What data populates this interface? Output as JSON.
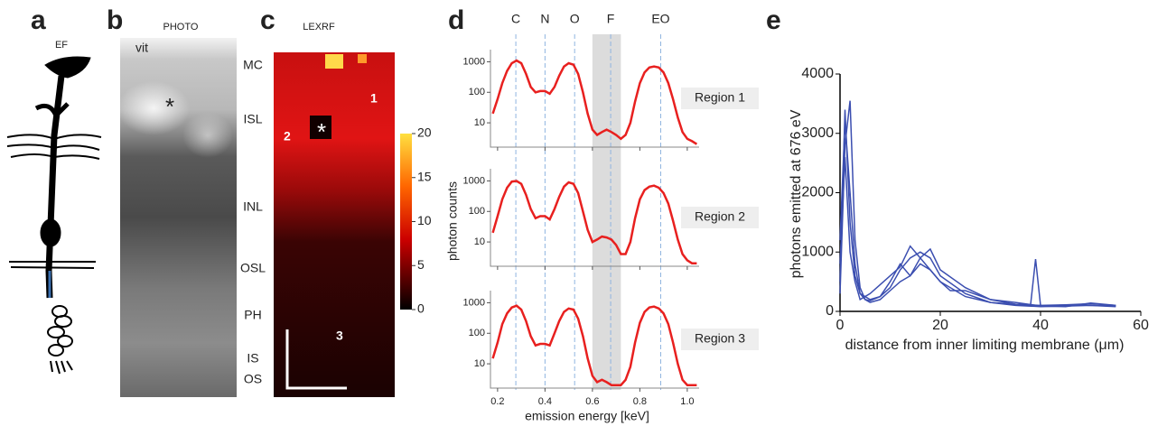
{
  "figure": {
    "panel_a": {
      "letter": "a",
      "label": "EF"
    },
    "panel_b": {
      "letter": "b",
      "label": "PHOTO",
      "vit": "vit",
      "star": "*",
      "layers": [
        "MC",
        "ISL",
        "INL",
        "OSL",
        "PH",
        "IS",
        "OS"
      ]
    },
    "panel_c": {
      "letter": "c",
      "label": "LEXRF",
      "star": "*",
      "regions": [
        "1",
        "2",
        "3"
      ],
      "colorbar": {
        "range": [
          0,
          20
        ],
        "ticks": [
          0,
          5,
          10,
          15,
          20
        ]
      }
    },
    "panel_d": {
      "letter": "d"
    },
    "panel_e": {
      "letter": "e"
    }
  },
  "chart_data": [
    {
      "type": "line",
      "subplots": true,
      "log_y": true,
      "xlabel": "emission energy [keV]",
      "ylabel": "photon counts",
      "x": [
        0.18,
        0.2,
        0.22,
        0.24,
        0.26,
        0.28,
        0.3,
        0.32,
        0.34,
        0.36,
        0.38,
        0.4,
        0.42,
        0.44,
        0.46,
        0.48,
        0.5,
        0.52,
        0.54,
        0.56,
        0.58,
        0.6,
        0.62,
        0.64,
        0.66,
        0.68,
        0.7,
        0.72,
        0.74,
        0.76,
        0.78,
        0.8,
        0.82,
        0.84,
        0.86,
        0.88,
        0.9,
        0.92,
        0.94,
        0.96,
        0.98,
        1.0,
        1.02,
        1.04
      ],
      "xlim": [
        0.17,
        1.05
      ],
      "xticks": [
        0.2,
        0.4,
        0.6,
        0.8,
        {
          "value": 1,
          "label": "1.0"
        }
      ],
      "ylim": [
        1.6,
        2500
      ],
      "yticks": [
        10,
        100,
        1000
      ],
      "markers": [
        {
          "label": "C",
          "x": 0.277
        },
        {
          "label": "N",
          "x": 0.4
        },
        {
          "label": "O",
          "x": 0.525
        },
        {
          "label": "F",
          "x": 0.677
        },
        {
          "label": "EO",
          "x": 0.888
        }
      ],
      "band": [
        0.6,
        0.72
      ],
      "series": [
        {
          "name": "Region 1",
          "color": "#e8201f",
          "values": [
            20,
            60,
            200,
            500,
            900,
            1100,
            900,
            400,
            150,
            100,
            110,
            110,
            90,
            150,
            350,
            700,
            900,
            800,
            400,
            100,
            20,
            6,
            4,
            5,
            6,
            5,
            4,
            3,
            4,
            10,
            50,
            200,
            450,
            650,
            700,
            650,
            450,
            200,
            60,
            15,
            5,
            3,
            2.5,
            2
          ]
        },
        {
          "name": "Region 2",
          "color": "#e8201f",
          "values": [
            20,
            70,
            250,
            600,
            950,
            1000,
            800,
            350,
            120,
            60,
            70,
            70,
            55,
            120,
            300,
            650,
            900,
            800,
            400,
            100,
            25,
            10,
            12,
            15,
            14,
            12,
            8,
            4,
            4,
            10,
            60,
            250,
            500,
            650,
            700,
            600,
            400,
            180,
            50,
            12,
            4,
            2.5,
            2,
            2
          ]
        },
        {
          "name": "Region 3",
          "color": "#e8201f",
          "values": [
            15,
            50,
            200,
            450,
            700,
            800,
            600,
            250,
            80,
            40,
            45,
            45,
            40,
            100,
            250,
            500,
            650,
            600,
            300,
            80,
            15,
            4,
            2.5,
            3,
            2.5,
            2,
            2,
            2,
            3,
            8,
            50,
            220,
            500,
            700,
            750,
            650,
            450,
            200,
            50,
            10,
            3,
            2,
            2,
            2
          ]
        }
      ]
    },
    {
      "type": "line",
      "xlabel": "distance from inner limiting membrane (μm)",
      "ylabel": "photons emitted at 676 eV",
      "xlim": [
        0,
        60
      ],
      "xticks": [
        0,
        20,
        40,
        60
      ],
      "ylim": [
        0,
        4000
      ],
      "yticks": [
        0,
        1000,
        2000,
        3000,
        4000
      ],
      "series": [
        {
          "color": "#3b4eb0",
          "x": [
            0,
            1,
            2,
            3,
            4,
            5,
            6,
            8,
            10,
            12,
            14,
            16,
            18,
            20,
            25,
            30,
            35,
            40,
            45,
            50,
            55
          ],
          "values": [
            500,
            3400,
            1500,
            600,
            300,
            200,
            150,
            200,
            350,
            500,
            600,
            800,
            700,
            500,
            250,
            150,
            100,
            80,
            90,
            100,
            80
          ]
        },
        {
          "color": "#3b4eb0",
          "x": [
            0,
            1,
            2,
            3,
            4,
            5,
            6,
            8,
            10,
            12,
            14,
            16,
            18,
            20,
            25,
            30,
            35,
            38,
            39,
            40,
            41,
            45,
            50,
            55
          ],
          "values": [
            300,
            2800,
            3550,
            1200,
            400,
            200,
            180,
            250,
            400,
            700,
            900,
            1000,
            900,
            600,
            300,
            150,
            120,
            100,
            880,
            100,
            90,
            110,
            100,
            90
          ]
        },
        {
          "color": "#3b4eb0",
          "x": [
            0,
            1,
            2,
            3,
            4,
            6,
            8,
            10,
            12,
            14,
            16,
            18,
            20,
            25,
            30,
            35,
            40,
            45,
            50,
            55
          ],
          "values": [
            800,
            2600,
            1000,
            500,
            200,
            300,
            450,
            600,
            750,
            1100,
            900,
            1050,
            700,
            400,
            200,
            120,
            100,
            110,
            130,
            100
          ]
        },
        {
          "color": "#3b4eb0",
          "x": [
            0,
            1,
            2,
            3,
            4,
            6,
            8,
            10,
            12,
            14,
            16,
            18,
            20,
            22,
            25,
            30,
            35,
            40,
            45,
            50,
            55
          ],
          "values": [
            1200,
            3200,
            2000,
            800,
            300,
            200,
            250,
            500,
            800,
            600,
            900,
            700,
            500,
            350,
            350,
            200,
            150,
            90,
            80,
            140,
            100
          ]
        }
      ]
    }
  ]
}
